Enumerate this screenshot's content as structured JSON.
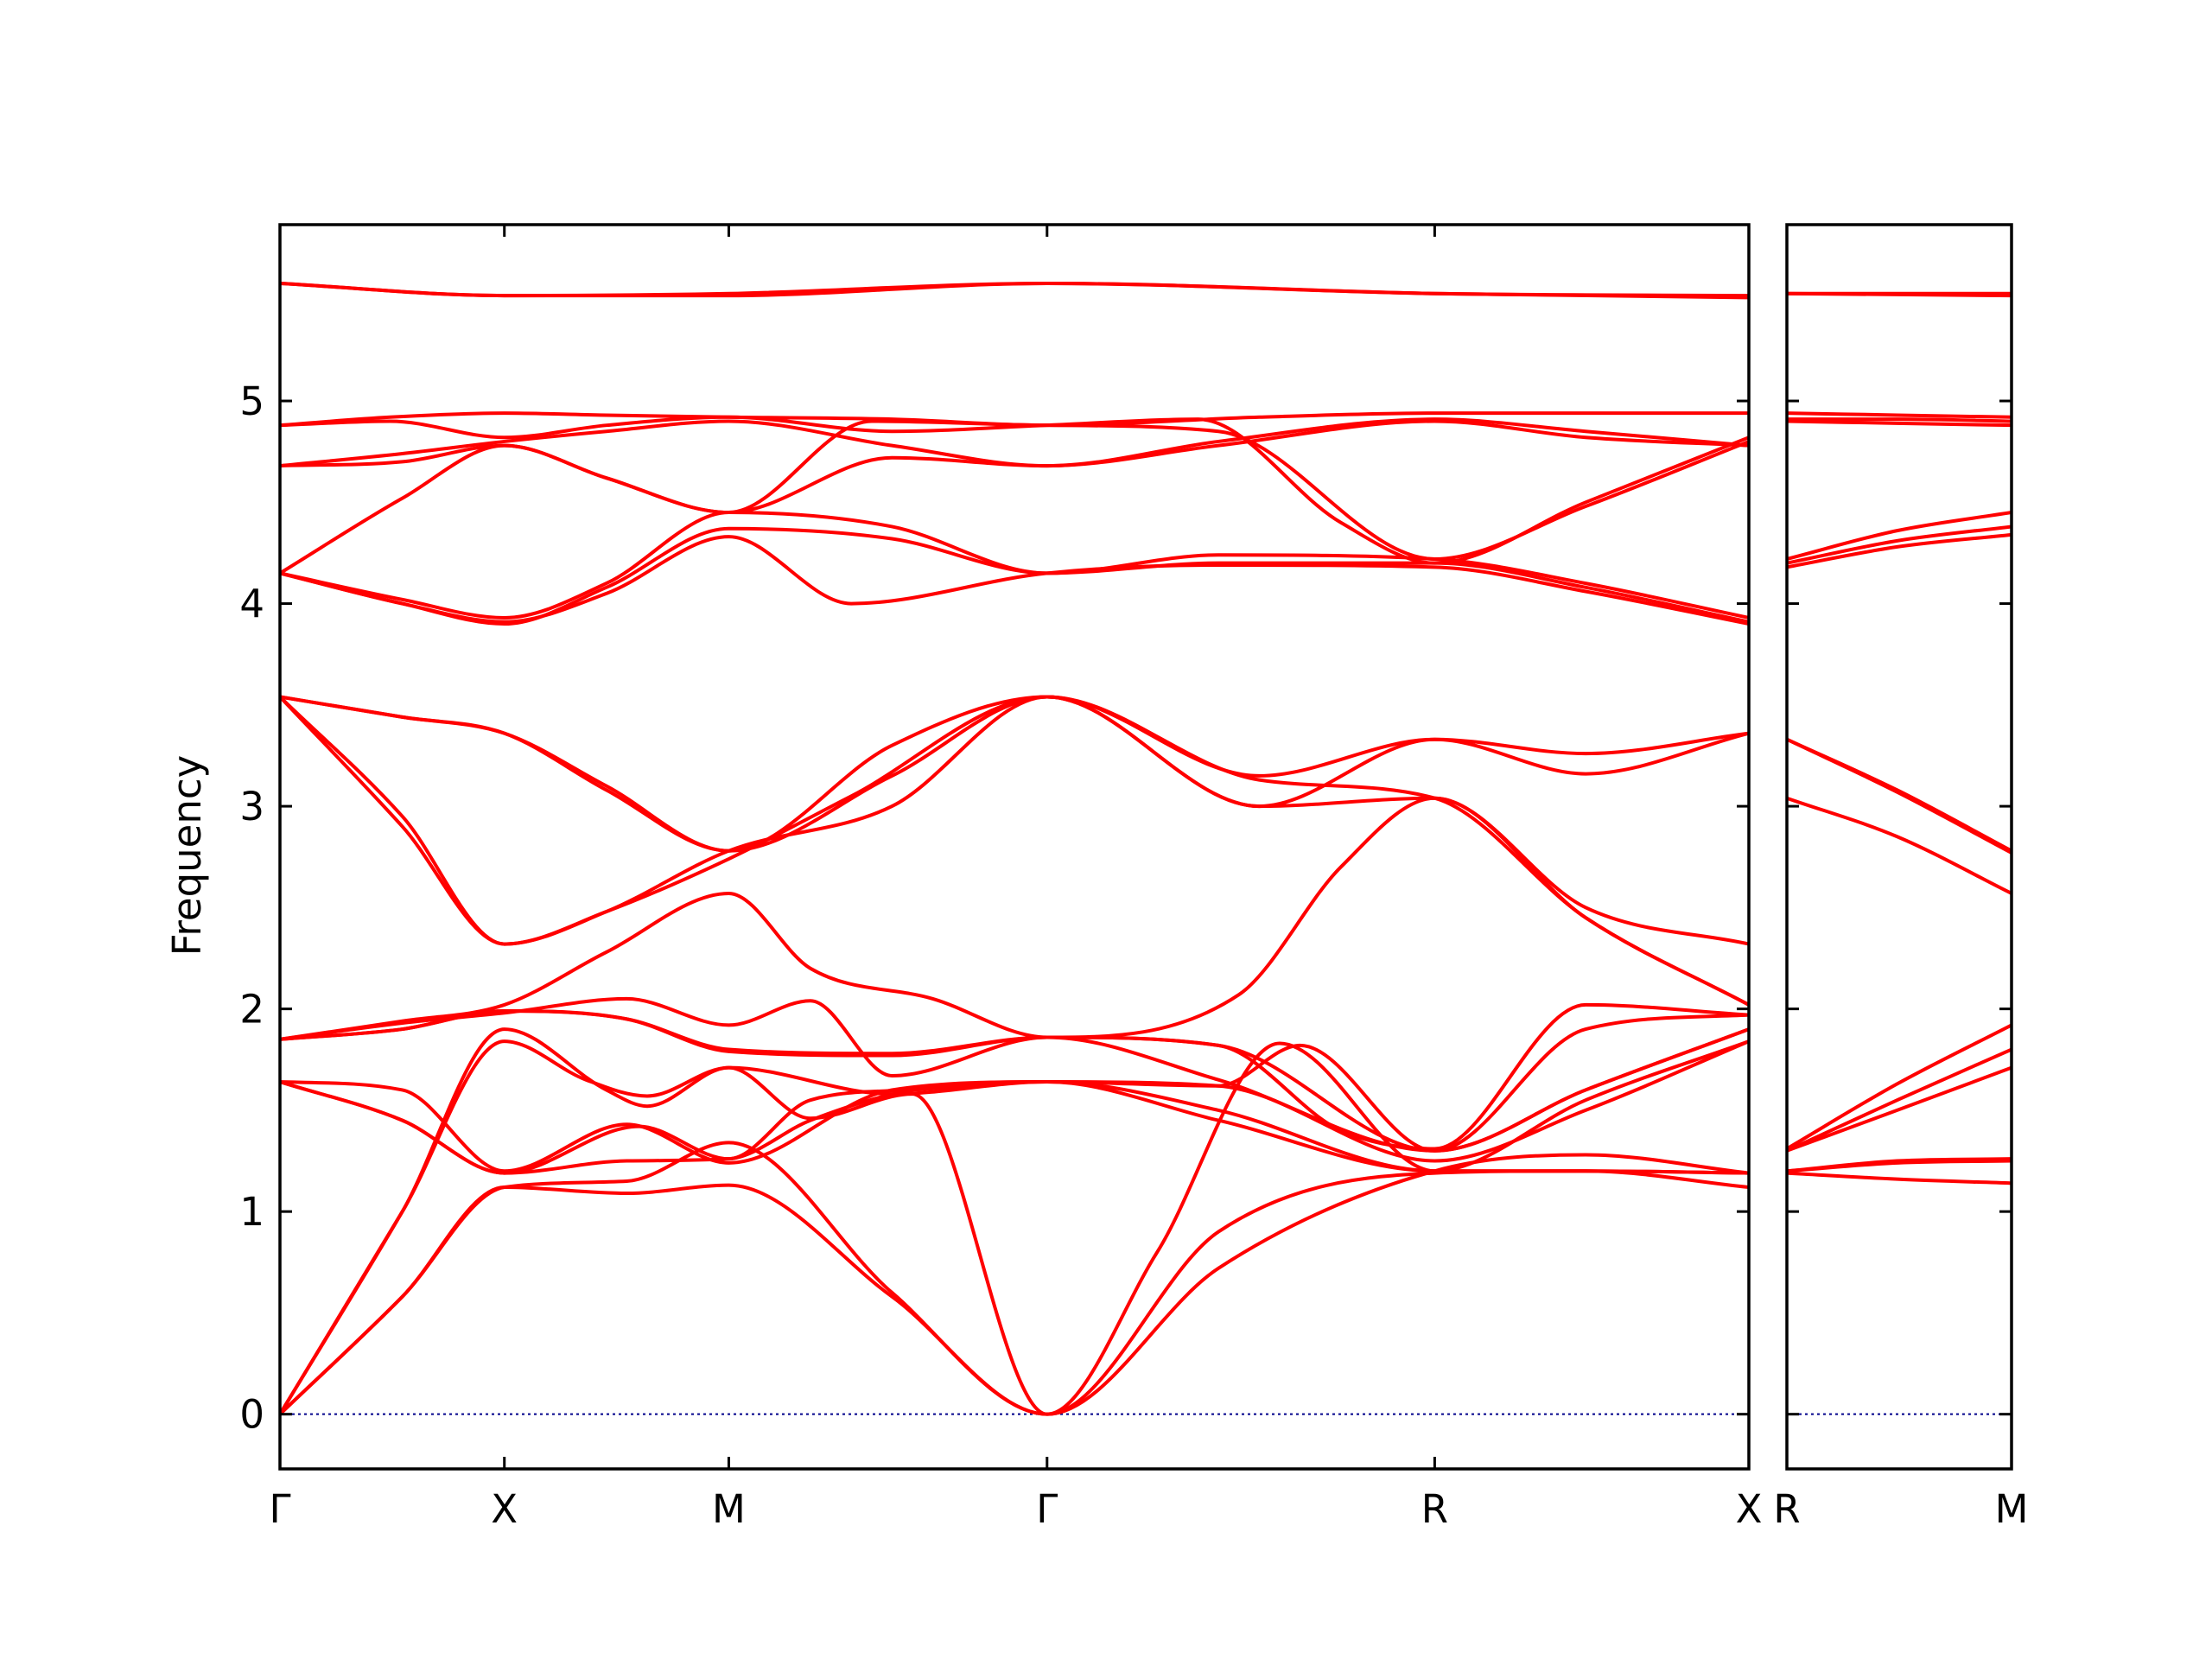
{
  "chart_data": {
    "type": "line",
    "title": "",
    "ylabel": "Frequency",
    "ylim": [
      -0.27,
      5.87
    ],
    "yticks": [
      0,
      1,
      2,
      3,
      4,
      5
    ],
    "grid": false,
    "legend": "none",
    "band_color": "#ff0000",
    "zero_line_color": "#00008b",
    "panels": [
      {
        "xlim": [
          0,
          3.6
        ],
        "ticks": [
          {
            "x": 0.0,
            "label": "Γ"
          },
          {
            "x": 0.55,
            "label": "X"
          },
          {
            "x": 1.1,
            "label": "M"
          },
          {
            "x": 1.88,
            "label": "Γ"
          },
          {
            "x": 2.83,
            "label": "R"
          },
          {
            "x": 3.6,
            "label": "X"
          }
        ],
        "series": [
          {
            "x": [
              0,
              0.55,
              1.1,
              1.88,
              2.83,
              3.6
            ],
            "y": [
              5.58,
              5.52,
              5.52,
              5.58,
              5.53,
              5.51
            ]
          },
          {
            "x": [
              0,
              0.55,
              1.1,
              1.88,
              2.83,
              3.6
            ],
            "y": [
              5.58,
              5.52,
              5.53,
              5.58,
              5.53,
              5.52
            ]
          },
          {
            "x": [
              0,
              0.27,
              0.55,
              0.8,
              1.1,
              1.5,
              1.88,
              2.4,
              2.83,
              3.2,
              3.6
            ],
            "y": [
              4.88,
              4.92,
              4.94,
              4.93,
              4.92,
              4.91,
              4.88,
              4.92,
              4.94,
              4.94,
              4.94
            ]
          },
          {
            "x": [
              0,
              0.27,
              0.55,
              0.8,
              1.1,
              1.5,
              1.88,
              2.25,
              2.6,
              2.83,
              3.2,
              3.6
            ],
            "y": [
              4.88,
              4.9,
              4.82,
              4.88,
              4.92,
              4.85,
              4.88,
              4.91,
              4.4,
              4.2,
              4.5,
              4.82
            ]
          },
          {
            "x": [
              0,
              0.3,
              0.55,
              0.8,
              1.1,
              1.5,
              1.88,
              2.3,
              2.83,
              3.2,
              3.6
            ],
            "y": [
              4.68,
              4.74,
              4.8,
              4.85,
              4.9,
              4.78,
              4.68,
              4.8,
              4.91,
              4.85,
              4.78
            ]
          },
          {
            "x": [
              0,
              0.3,
              0.55,
              0.8,
              1.1,
              1.5,
              1.88,
              2.3,
              2.83,
              3.2,
              3.6
            ],
            "y": [
              4.68,
              4.7,
              4.78,
              4.62,
              4.45,
              4.72,
              4.68,
              4.78,
              4.9,
              4.82,
              4.78
            ]
          },
          {
            "x": [
              0,
              0.3,
              0.55,
              0.8,
              1.1,
              1.45,
              1.88,
              2.3,
              2.83,
              3.2,
              3.6
            ],
            "y": [
              4.15,
              4.52,
              4.78,
              4.62,
              4.45,
              4.9,
              4.88,
              4.85,
              4.22,
              4.48,
              4.8
            ]
          },
          {
            "x": [
              0,
              0.3,
              0.55,
              0.8,
              1.1,
              1.5,
              1.88,
              2.3,
              2.83,
              3.2,
              3.6
            ],
            "y": [
              4.15,
              4.02,
              3.93,
              4.1,
              4.45,
              4.38,
              4.15,
              4.24,
              4.22,
              4.1,
              3.93
            ]
          },
          {
            "x": [
              0,
              0.3,
              0.55,
              0.8,
              1.1,
              1.5,
              1.88,
              2.3,
              2.83,
              3.2,
              3.6
            ],
            "y": [
              4.15,
              4.0,
              3.9,
              4.08,
              4.37,
              4.32,
              4.15,
              4.2,
              4.2,
              4.08,
              3.91
            ]
          },
          {
            "x": [
              0,
              0.3,
              0.55,
              0.8,
              1.1,
              1.4,
              1.88,
              2.3,
              2.83,
              3.2,
              3.6
            ],
            "y": [
              4.15,
              4.0,
              3.91,
              4.05,
              4.33,
              4.0,
              4.15,
              4.19,
              4.18,
              4.06,
              3.9
            ]
          },
          {
            "x": [
              0,
              0.3,
              0.55,
              0.8,
              1.1,
              1.5,
              1.88,
              2.4,
              2.83,
              3.2,
              3.6
            ],
            "y": [
              3.54,
              3.44,
              3.36,
              3.1,
              2.78,
              3.3,
              3.54,
              3.15,
              3.33,
              3.26,
              3.36
            ]
          },
          {
            "x": [
              0,
              0.3,
              0.55,
              0.8,
              1.1,
              1.5,
              1.88,
              2.4,
              2.83,
              3.2,
              3.6
            ],
            "y": [
              3.54,
              3.44,
              3.36,
              3.08,
              2.78,
              3.15,
              3.54,
              3.0,
              3.33,
              3.16,
              3.36
            ]
          },
          {
            "x": [
              0,
              0.3,
              0.55,
              0.8,
              1.1,
              1.5,
              1.88,
              2.4,
              2.83,
              3.2,
              3.6
            ],
            "y": [
              3.54,
              2.9,
              2.32,
              2.48,
              2.78,
              3.0,
              3.54,
              3.0,
              3.04,
              2.5,
              2.32
            ]
          },
          {
            "x": [
              0,
              0.3,
              0.55,
              0.8,
              1.1,
              1.4,
              1.88,
              2.4,
              2.83,
              3.2,
              3.6
            ],
            "y": [
              3.54,
              2.95,
              2.32,
              2.48,
              2.74,
              3.05,
              3.54,
              3.13,
              3.04,
              2.45,
              2.02
            ]
          },
          {
            "x": [
              0,
              0.3,
              0.55,
              0.8,
              1.1,
              1.3,
              1.6,
              1.88,
              2.35,
              2.6,
              2.83,
              3.2,
              3.6
            ],
            "y": [
              1.85,
              1.94,
              2.02,
              2.28,
              2.57,
              2.2,
              2.05,
              1.86,
              2.07,
              2.7,
              3.04,
              2.45,
              2.02
            ]
          },
          {
            "x": [
              0,
              0.3,
              0.55,
              0.85,
              1.1,
              1.3,
              1.5,
              1.88,
              2.3,
              2.6,
              2.83,
              3.2,
              3.6
            ],
            "y": [
              1.85,
              1.93,
              1.98,
              2.05,
              1.92,
              2.04,
              1.67,
              1.86,
              1.82,
              1.4,
              1.31,
              2.02,
              1.97
            ]
          },
          {
            "x": [
              0,
              0.3,
              0.55,
              0.85,
              1.1,
              1.5,
              1.88,
              2.3,
              2.83,
              3.2,
              3.6
            ],
            "y": [
              1.85,
              1.9,
              1.99,
              1.95,
              1.8,
              1.78,
              1.86,
              1.82,
              1.3,
              1.9,
              1.97
            ]
          },
          {
            "x": [
              0,
              0.3,
              0.55,
              0.85,
              1.1,
              1.5,
              1.88,
              2.3,
              2.83,
              3.2,
              3.6
            ],
            "y": [
              1.85,
              1.9,
              1.99,
              1.95,
              1.79,
              1.77,
              1.86,
              1.65,
              1.3,
              1.6,
              1.9
            ]
          },
          {
            "x": [
              0,
              0.3,
              0.55,
              0.88,
              1.1,
              1.3,
              1.55,
              1.88,
              2.3,
              2.83,
              3.2,
              3.6
            ],
            "y": [
              1.64,
              1.45,
              1.19,
              1.42,
              1.26,
              1.55,
              1.6,
              1.64,
              1.5,
              1.2,
              1.2,
              1.19
            ]
          },
          {
            "x": [
              0,
              0.3,
              0.55,
              0.85,
              1.1,
              1.3,
              1.55,
              1.88,
              2.3,
              2.83,
              3.2,
              3.6
            ],
            "y": [
              1.64,
              1.45,
              1.19,
              1.25,
              1.26,
              1.45,
              1.6,
              1.64,
              1.45,
              1.2,
              1.2,
              1.19
            ]
          },
          {
            "x": [
              0,
              0.3,
              0.55,
              0.85,
              1.1,
              1.5,
              1.88,
              2.3,
              2.83,
              3.2,
              3.6
            ],
            "y": [
              1.64,
              1.6,
              1.2,
              1.43,
              1.24,
              1.6,
              1.64,
              1.62,
              1.25,
              1.5,
              1.84
            ]
          },
          {
            "x": [
              0,
              0.3,
              0.55,
              0.8,
              0.9,
              1.1,
              1.5,
              1.88,
              2.3,
              2.5,
              2.83,
              3.2,
              3.6
            ],
            "y": [
              0,
              1.0,
              1.9,
              1.6,
              1.52,
              1.71,
              1.58,
              1.64,
              1.62,
              1.82,
              1.3,
              1.6,
              1.9
            ]
          },
          {
            "x": [
              0,
              0.3,
              0.55,
              0.75,
              0.9,
              1.1,
              1.3,
              1.55,
              1.88,
              2.15,
              2.45,
              2.83,
              3.2,
              3.6
            ],
            "y": [
              0,
              1.0,
              1.84,
              1.65,
              1.57,
              1.71,
              1.46,
              1.58,
              0,
              0.8,
              1.83,
              1.2,
              1.55,
              1.84
            ]
          },
          {
            "x": [
              0,
              0.3,
              0.55,
              0.85,
              1.1,
              1.5,
              1.88,
              2.3,
              2.83,
              3.2,
              3.6
            ],
            "y": [
              0,
              0.58,
              1.12,
              1.15,
              1.34,
              0.6,
              0,
              0.72,
              1.2,
              1.28,
              1.19
            ]
          },
          {
            "x": [
              0,
              0.3,
              0.55,
              0.85,
              1.1,
              1.5,
              1.88,
              2.3,
              2.83,
              3.2,
              3.6
            ],
            "y": [
              0,
              0.58,
              1.12,
              1.09,
              1.13,
              0.58,
              0,
              0.9,
              1.19,
              1.2,
              1.12
            ]
          }
        ]
      },
      {
        "xlim": [
          0,
          0.55
        ],
        "ticks": [
          {
            "x": 0.0,
            "label": "R"
          },
          {
            "x": 0.55,
            "label": "M"
          }
        ],
        "series": [
          {
            "x": [
              0,
              0.55
            ],
            "y": [
              5.53,
              5.52
            ]
          },
          {
            "x": [
              0,
              0.55
            ],
            "y": [
              5.53,
              5.53
            ]
          },
          {
            "x": [
              0,
              0.27,
              0.55
            ],
            "y": [
              4.94,
              4.93,
              4.92
            ]
          },
          {
            "x": [
              0,
              0.27,
              0.55
            ],
            "y": [
              4.91,
              4.91,
              4.9
            ]
          },
          {
            "x": [
              0,
              0.27,
              0.55
            ],
            "y": [
              4.9,
              4.89,
              4.88
            ]
          },
          {
            "x": [
              0,
              0.27,
              0.55
            ],
            "y": [
              4.22,
              4.36,
              4.45
            ]
          },
          {
            "x": [
              0,
              0.27,
              0.55
            ],
            "y": [
              4.2,
              4.31,
              4.38
            ]
          },
          {
            "x": [
              0,
              0.27,
              0.55
            ],
            "y": [
              4.18,
              4.28,
              4.34
            ]
          },
          {
            "x": [
              0,
              0.27,
              0.55
            ],
            "y": [
              3.33,
              3.08,
              2.78
            ]
          },
          {
            "x": [
              0,
              0.27,
              0.55
            ],
            "y": [
              3.33,
              3.07,
              2.77
            ]
          },
          {
            "x": [
              0,
              0.27,
              0.55
            ],
            "y": [
              3.04,
              2.85,
              2.57
            ]
          },
          {
            "x": [
              0,
              0.27,
              0.55
            ],
            "y": [
              1.31,
              1.63,
              1.92
            ]
          },
          {
            "x": [
              0,
              0.27,
              0.55
            ],
            "y": [
              1.3,
              1.55,
              1.8
            ]
          },
          {
            "x": [
              0,
              0.27,
              0.55
            ],
            "y": [
              1.3,
              1.5,
              1.71
            ]
          },
          {
            "x": [
              0,
              0.27,
              0.55
            ],
            "y": [
              1.2,
              1.25,
              1.26
            ]
          },
          {
            "x": [
              0,
              0.27,
              0.55
            ],
            "y": [
              1.2,
              1.24,
              1.25
            ]
          },
          {
            "x": [
              0,
              0.27,
              0.55
            ],
            "y": [
              1.19,
              1.16,
              1.14
            ]
          }
        ]
      }
    ]
  }
}
